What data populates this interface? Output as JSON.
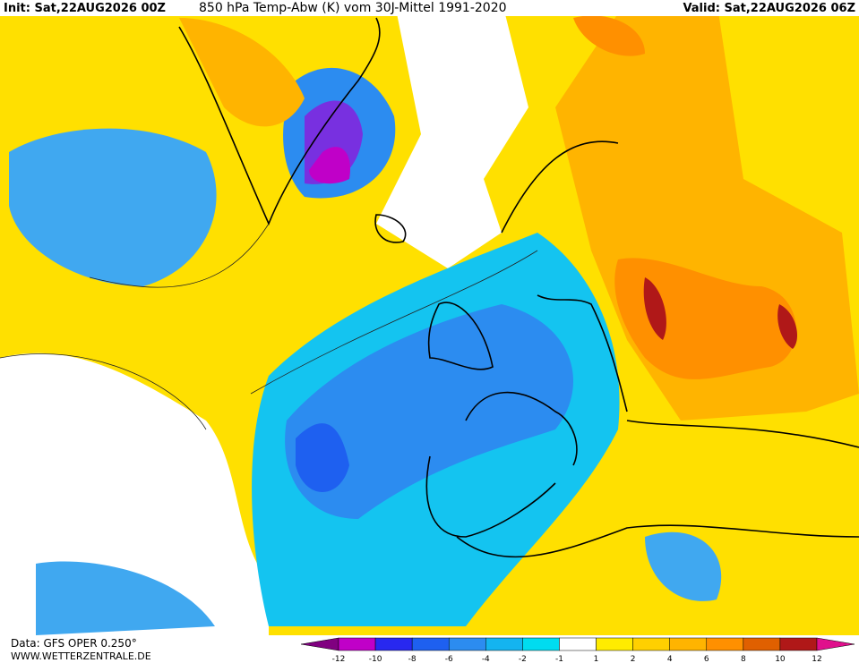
{
  "header": {
    "init": "Init: Sat,22AUG2026 00Z",
    "title": "850 hPa Temp-Abw (K) vom 30J-Mittel 1991-2020",
    "valid": "Valid: Sat,22AUG2026 06Z"
  },
  "footer": {
    "data": "Data: GFS OPER 0.250°",
    "url": "WWW.WETTERZENTRALE.DE"
  },
  "colorbar": {
    "ticks": [
      -12,
      -10,
      -8,
      -6,
      -4,
      -2,
      -1,
      1,
      2,
      4,
      6,
      8,
      10,
      12
    ],
    "colors": [
      "#800080",
      "#c000c8",
      "#2828f0",
      "#1e60f0",
      "#2c8cf0",
      "#14b4f0",
      "#00dcf0",
      "#ffffff",
      "#ffec00",
      "#ffd000",
      "#ffb400",
      "#ff9000",
      "#e06000",
      "#b01818",
      "#e0108c"
    ]
  }
}
